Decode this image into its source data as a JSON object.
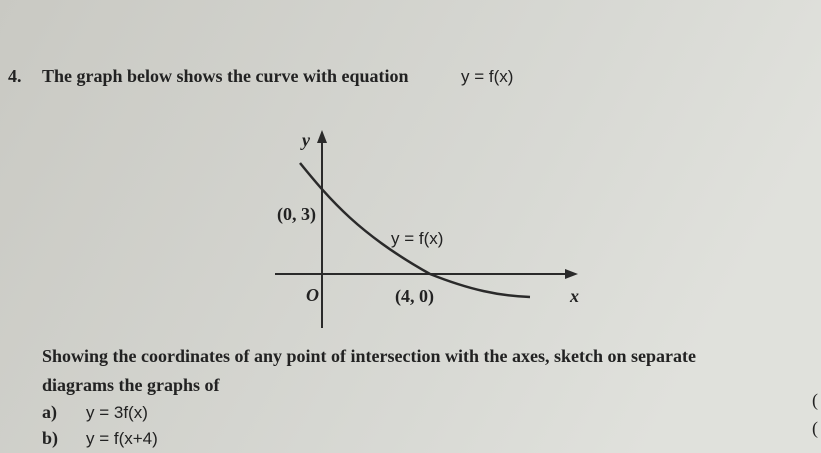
{
  "question": {
    "number": "4.",
    "statement": "The graph below shows the curve with equation",
    "equation": "y = f(x)"
  },
  "graph": {
    "y_axis_label": "y",
    "x_axis_label": "x",
    "origin_label": "O",
    "y_intercept_label": "(0, 3)",
    "x_intercept_label": "(4, 0)",
    "curve_label": "y = f(x)"
  },
  "instruction": {
    "lines": [
      "Showing the coordinates of any point of intersection with the axes, sketch on separate",
      "diagrams the graphs of"
    ]
  },
  "parts": [
    {
      "label": "a)",
      "equation": "y = 3f(x)"
    },
    {
      "label": "b)",
      "equation": "y = f(x+4)"
    }
  ],
  "margin_marks": [
    "(",
    "("
  ]
}
